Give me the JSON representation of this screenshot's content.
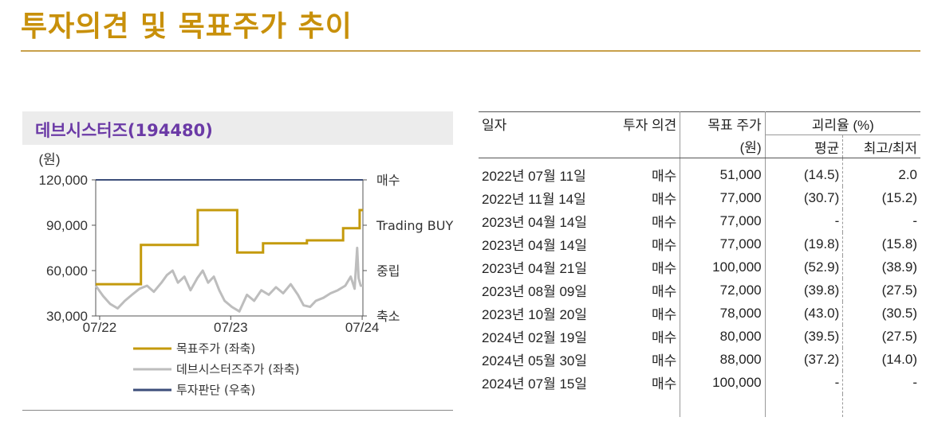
{
  "page": {
    "title": "투자의견 및 목표주가 추이"
  },
  "chart_panel": {
    "company_title": "데브시스터즈(194480)"
  },
  "chart_data": {
    "type": "line",
    "y_unit_label": "(원)",
    "y_ticks": [
      "120,000",
      "90,000",
      "60,000",
      "30,000"
    ],
    "y_tick_values": [
      120000,
      90000,
      60000,
      30000
    ],
    "ylim": [
      30000,
      120000
    ],
    "x_ticks": [
      "07/22",
      "07/23",
      "07/24"
    ],
    "right_ticks": [
      "매수",
      "Trading BUY",
      "중립",
      "축소"
    ],
    "series": [
      {
        "name": "목표주가 (좌축)",
        "color": "#c49a0c",
        "steps": [
          [
            "2022-07-11",
            51000
          ],
          [
            "2022-11-14",
            77000
          ],
          [
            "2023-04-14",
            77000
          ],
          [
            "2023-04-21",
            100000
          ],
          [
            "2023-08-09",
            72000
          ],
          [
            "2023-10-20",
            78000
          ],
          [
            "2024-02-19",
            80000
          ],
          [
            "2024-05-30",
            88000
          ],
          [
            "2024-07-15",
            100000
          ],
          [
            "2024-07-24",
            100000
          ]
        ]
      },
      {
        "name": "데브시스터즈주가 (좌축)",
        "color": "#bdbdbd",
        "points": [
          [
            "2022-07-11",
            50000
          ],
          [
            "2022-08-01",
            43000
          ],
          [
            "2022-08-20",
            38000
          ],
          [
            "2022-09-10",
            35000
          ],
          [
            "2022-09-30",
            40000
          ],
          [
            "2022-10-20",
            44000
          ],
          [
            "2022-11-10",
            48000
          ],
          [
            "2022-12-01",
            50000
          ],
          [
            "2022-12-20",
            46000
          ],
          [
            "2023-01-10",
            52000
          ],
          [
            "2023-01-25",
            57000
          ],
          [
            "2023-02-10",
            60000
          ],
          [
            "2023-02-25",
            52000
          ],
          [
            "2023-03-15",
            56000
          ],
          [
            "2023-04-01",
            47000
          ],
          [
            "2023-04-20",
            55000
          ],
          [
            "2023-05-05",
            60000
          ],
          [
            "2023-05-20",
            52000
          ],
          [
            "2023-06-05",
            56000
          ],
          [
            "2023-06-20",
            47000
          ],
          [
            "2023-07-05",
            40000
          ],
          [
            "2023-07-25",
            36000
          ],
          [
            "2023-08-15",
            33000
          ],
          [
            "2023-09-05",
            44000
          ],
          [
            "2023-09-25",
            40000
          ],
          [
            "2023-10-15",
            47000
          ],
          [
            "2023-11-05",
            44000
          ],
          [
            "2023-11-25",
            49000
          ],
          [
            "2023-12-15",
            45000
          ],
          [
            "2024-01-05",
            51000
          ],
          [
            "2024-01-25",
            44000
          ],
          [
            "2024-02-10",
            37000
          ],
          [
            "2024-02-28",
            36000
          ],
          [
            "2024-03-15",
            40000
          ],
          [
            "2024-04-05",
            42000
          ],
          [
            "2024-04-25",
            45000
          ],
          [
            "2024-05-15",
            47000
          ],
          [
            "2024-06-05",
            50000
          ],
          [
            "2024-06-20",
            56000
          ],
          [
            "2024-07-01",
            48000
          ],
          [
            "2024-07-08",
            75000
          ],
          [
            "2024-07-12",
            55000
          ],
          [
            "2024-07-18",
            50000
          ],
          [
            "2024-07-24",
            50000
          ]
        ]
      },
      {
        "name": "투자판단 (우축)",
        "color": "#3d4e7a",
        "level": "매수"
      }
    ]
  },
  "table": {
    "headers": {
      "date": "일자",
      "opinion": "투자 의견",
      "target": "목표 주가",
      "target_unit": "(원)",
      "premium": "괴리율 (%)",
      "avg": "평균",
      "hilo": "최고/최저"
    },
    "rows": [
      {
        "date": "2022년 07월 11일",
        "opinion": "매수",
        "target": "51,000",
        "avg": "(14.5)",
        "hilo": "2.0"
      },
      {
        "date": "2022년 11월 14일",
        "opinion": "매수",
        "target": "77,000",
        "avg": "(30.7)",
        "hilo": "(15.2)"
      },
      {
        "date": "2023년 04월 14일",
        "opinion": "매수",
        "target": "77,000",
        "avg": "-",
        "hilo": "-"
      },
      {
        "date": "2023년 04월 14일",
        "opinion": "매수",
        "target": "77,000",
        "avg": "(19.8)",
        "hilo": "(15.8)"
      },
      {
        "date": "2023년 04월 21일",
        "opinion": "매수",
        "target": "100,000",
        "avg": "(52.9)",
        "hilo": "(38.9)"
      },
      {
        "date": "2023년 08월 09일",
        "opinion": "매수",
        "target": "72,000",
        "avg": "(39.8)",
        "hilo": "(27.5)"
      },
      {
        "date": "2023년 10월 20일",
        "opinion": "매수",
        "target": "78,000",
        "avg": "(43.0)",
        "hilo": "(30.5)"
      },
      {
        "date": "2024년 02월 19일",
        "opinion": "매수",
        "target": "80,000",
        "avg": "(39.5)",
        "hilo": "(27.5)"
      },
      {
        "date": "2024년 05월 30일",
        "opinion": "매수",
        "target": "88,000",
        "avg": "(37.2)",
        "hilo": "(14.0)"
      },
      {
        "date": "2024년 07월 15일",
        "opinion": "매수",
        "target": "100,000",
        "avg": "-",
        "hilo": "-"
      }
    ]
  }
}
